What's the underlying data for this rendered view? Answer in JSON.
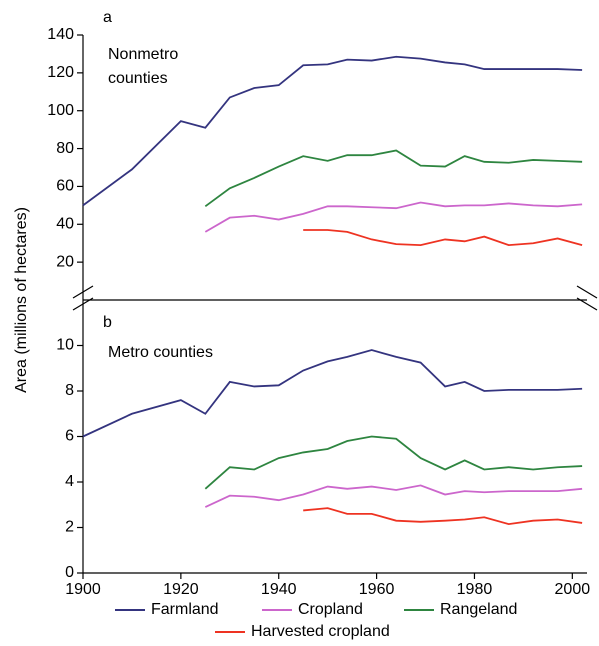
{
  "chart_data": [
    {
      "type": "line",
      "panel_label": "a",
      "subtitle_lines": [
        "Nonmetro",
        "counties"
      ],
      "x": [
        1900,
        1910,
        1920,
        1925,
        1930,
        1935,
        1940,
        1945,
        1950,
        1954,
        1959,
        1964,
        1969,
        1974,
        1978,
        1982,
        1987,
        1992,
        1997,
        2002
      ],
      "xlim": [
        1900,
        2003
      ],
      "ylim": [
        0,
        140
      ],
      "yticks": [
        20,
        40,
        60,
        80,
        100,
        120,
        140
      ],
      "series": [
        {
          "name": "Farmland",
          "color": "#34347f",
          "values": [
            50,
            69,
            94.5,
            91,
            107,
            112,
            113.5,
            124,
            124.5,
            127,
            126.5,
            128.5,
            127.5,
            125.5,
            124.5,
            122,
            122,
            122,
            122,
            121.5
          ]
        },
        {
          "name": "Cropland",
          "color": "#cc66cc",
          "values": [
            null,
            null,
            null,
            36,
            43.5,
            44.5,
            42.5,
            45.5,
            49.5,
            49.5,
            49,
            48.5,
            51.5,
            49.5,
            50,
            50,
            51,
            50,
            49.5,
            50.5
          ]
        },
        {
          "name": "Rangeland",
          "color": "#2e8540",
          "values": [
            null,
            null,
            null,
            49.5,
            59,
            64.5,
            70.5,
            76,
            73.5,
            76.5,
            76.5,
            79,
            71,
            70.5,
            76,
            73,
            72.5,
            74,
            73.5,
            73
          ]
        },
        {
          "name": "Harvested cropland",
          "color": "#ee3322",
          "values": [
            null,
            null,
            null,
            null,
            null,
            null,
            null,
            37,
            37,
            36,
            32,
            29.5,
            29,
            32,
            31,
            33.5,
            29,
            30,
            32.5,
            29
          ]
        }
      ]
    },
    {
      "type": "line",
      "panel_label": "b",
      "subtitle_lines": [
        "Metro counties"
      ],
      "y_label": "Area (millions of hectares)",
      "x": [
        1900,
        1910,
        1920,
        1925,
        1930,
        1935,
        1940,
        1945,
        1950,
        1954,
        1959,
        1964,
        1969,
        1974,
        1978,
        1982,
        1987,
        1992,
        1997,
        2002
      ],
      "xlim": [
        1900,
        2003
      ],
      "xticks": [
        1900,
        1920,
        1940,
        1960,
        1980,
        2000
      ],
      "ylim": [
        0,
        12
      ],
      "yticks": [
        0,
        2,
        4,
        6,
        8,
        10
      ],
      "series": [
        {
          "color": "#34347f",
          "values": [
            6,
            7,
            7.6,
            7,
            8.4,
            8.2,
            8.25,
            8.9,
            9.3,
            9.5,
            9.8,
            9.5,
            9.25,
            8.2,
            8.4,
            8,
            8.05,
            8.05,
            8.05,
            8.1
          ]
        },
        {
          "color": "#cc66cc",
          "values": [
            null,
            null,
            null,
            2.9,
            3.4,
            3.35,
            3.2,
            3.45,
            3.8,
            3.7,
            3.8,
            3.65,
            3.85,
            3.45,
            3.6,
            3.55,
            3.6,
            3.6,
            3.6,
            3.7
          ]
        },
        {
          "color": "#2e8540",
          "values": [
            null,
            null,
            null,
            3.7,
            4.65,
            4.55,
            5.05,
            5.3,
            5.45,
            5.8,
            6,
            5.9,
            5.05,
            4.55,
            4.95,
            4.55,
            4.65,
            4.55,
            4.65,
            4.7
          ]
        },
        {
          "color": "#ee3322",
          "values": [
            null,
            null,
            null,
            null,
            null,
            null,
            null,
            2.75,
            2.85,
            2.6,
            2.6,
            2.3,
            2.25,
            2.3,
            2.35,
            2.45,
            2.15,
            2.3,
            2.35,
            2.2
          ]
        }
      ]
    }
  ]
}
